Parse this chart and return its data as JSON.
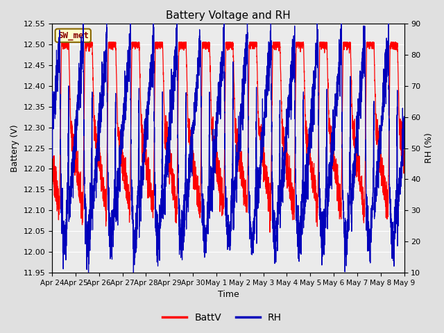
{
  "title": "Battery Voltage and RH",
  "xlabel": "Time",
  "ylabel_left": "Battery (V)",
  "ylabel_right": "RH (%)",
  "station_label": "SW_met",
  "ylim_left": [
    11.95,
    12.55
  ],
  "ylim_right": [
    10,
    90
  ],
  "yticks_left": [
    11.95,
    12.0,
    12.05,
    12.1,
    12.15,
    12.2,
    12.25,
    12.3,
    12.35,
    12.4,
    12.45,
    12.5,
    12.55
  ],
  "yticks_right": [
    10,
    20,
    30,
    40,
    50,
    60,
    70,
    80,
    90
  ],
  "xtick_labels": [
    "Apr 24",
    "Apr 25",
    "Apr 26",
    "Apr 27",
    "Apr 28",
    "Apr 29",
    "Apr 30",
    "May 1",
    "May 2",
    "May 3",
    "May 4",
    "May 5",
    "May 6",
    "May 7",
    "May 8",
    "May 9"
  ],
  "color_battv": "#FF0000",
  "color_rh": "#0000BB",
  "legend_battv": "BattV",
  "legend_rh": "RH",
  "bg_color": "#E0E0E0",
  "plot_bg_color": "#EBEBEB",
  "grid_color": "#FFFFFF",
  "station_label_bg": "#FFFFCC",
  "station_label_border": "#886600",
  "station_label_text_color": "#880000",
  "n_days": 15,
  "pts_per_day": 288
}
